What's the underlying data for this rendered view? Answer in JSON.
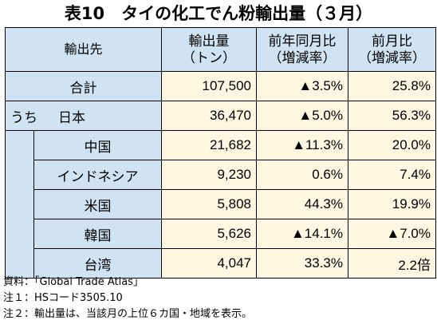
{
  "title": "表10　タイの化工でん粉輸出量（３月）",
  "headers": {
    "destination": "輸出先",
    "volume": [
      "輸出量",
      "（トン）"
    ],
    "yoy": [
      "前年同月比",
      "（増減率）"
    ],
    "mom": [
      "前月比",
      "（増減率）"
    ]
  },
  "total": {
    "name": "合計",
    "volume": "107,500",
    "yoy": "▲3.5%",
    "mom": "25.8%"
  },
  "rows": [
    {
      "prefix": "うち",
      "name": "日本",
      "volume": "36,470",
      "yoy": "▲5.0%",
      "mom": "56.3%"
    },
    {
      "name": "中国",
      "volume": "21,682",
      "yoy": "▲11.3%",
      "mom": "20.0%"
    },
    {
      "name": "インドネシア",
      "volume": "9,230",
      "yoy": "0.6%",
      "mom": "7.4%"
    },
    {
      "name": "米国",
      "volume": "5,808",
      "yoy": "44.3%",
      "mom": "19.9%"
    },
    {
      "name": "韓国",
      "volume": "5,626",
      "yoy": "▲14.1%",
      "mom": "▲7.0%"
    },
    {
      "name": "台湾",
      "volume": "4,047",
      "yoy": "33.3%",
      "mom": "2.2倍"
    }
  ],
  "notes": [
    "資料：「Global Trade Atlas」",
    "注１：HSコード3505.10",
    "注２：輸出量は、当該月の上位６カ国・地域を表示。"
  ]
}
